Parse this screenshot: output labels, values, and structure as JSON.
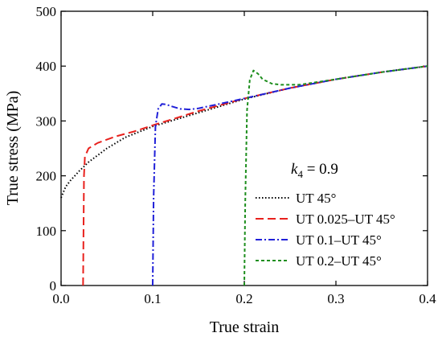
{
  "chart_data": {
    "type": "line",
    "xlabel": "True strain",
    "ylabel": "True stress (MPa)",
    "xlim": [
      0.0,
      0.4
    ],
    "ylim": [
      0,
      500
    ],
    "xticks": [
      0.0,
      0.1,
      0.2,
      0.3,
      0.4
    ],
    "xtick_labels": [
      "0.0",
      "0.1",
      "0.2",
      "0.3",
      "0.4"
    ],
    "yticks": [
      0,
      100,
      200,
      300,
      400,
      500
    ],
    "ytick_labels": [
      "0",
      "100",
      "200",
      "300",
      "400",
      "500"
    ],
    "grid": false,
    "legend_position": "right",
    "annotation": {
      "main": "k",
      "sub": "4",
      "rest": " = 0.9"
    },
    "series": [
      {
        "name": "UT 45°",
        "color": "#000000",
        "style": "dotted",
        "x": [
          0.0,
          0.005,
          0.01,
          0.02,
          0.03,
          0.05,
          0.07,
          0.1,
          0.15,
          0.2,
          0.25,
          0.3,
          0.35,
          0.4
        ],
        "y": [
          160,
          180,
          191,
          209,
          225,
          250,
          270,
          290,
          315,
          340,
          360,
          376,
          389,
          400
        ]
      },
      {
        "name": "UT 0.025–UT 45°",
        "color": "#e8211d",
        "style": "dashed",
        "x": [
          0.024,
          0.025,
          0.026,
          0.03,
          0.04,
          0.06,
          0.08,
          0.1,
          0.15,
          0.2,
          0.25,
          0.3,
          0.35,
          0.4
        ],
        "y": [
          0,
          200,
          235,
          250,
          260,
          272,
          281,
          292,
          318,
          341,
          360,
          376,
          389,
          400
        ]
      },
      {
        "name": "UT 0.1–UT 45°",
        "color": "#2020d8",
        "style": "dashdot",
        "x": [
          0.1,
          0.101,
          0.103,
          0.106,
          0.11,
          0.115,
          0.12,
          0.13,
          0.14,
          0.15,
          0.17,
          0.2,
          0.25,
          0.3,
          0.35,
          0.4
        ],
        "y": [
          0,
          160,
          290,
          322,
          331,
          330,
          327,
          322,
          321,
          323,
          330,
          341,
          360,
          376,
          389,
          400
        ]
      },
      {
        "name": "UT 0.2–UT 45°",
        "color": "#1e8e1e",
        "style": "dashed-short",
        "x": [
          0.2,
          0.201,
          0.203,
          0.206,
          0.21,
          0.215,
          0.22,
          0.23,
          0.24,
          0.25,
          0.26,
          0.3,
          0.35,
          0.4
        ],
        "y": [
          0,
          150,
          320,
          375,
          392,
          386,
          376,
          368,
          366,
          366,
          366,
          376,
          389,
          400
        ]
      }
    ]
  }
}
